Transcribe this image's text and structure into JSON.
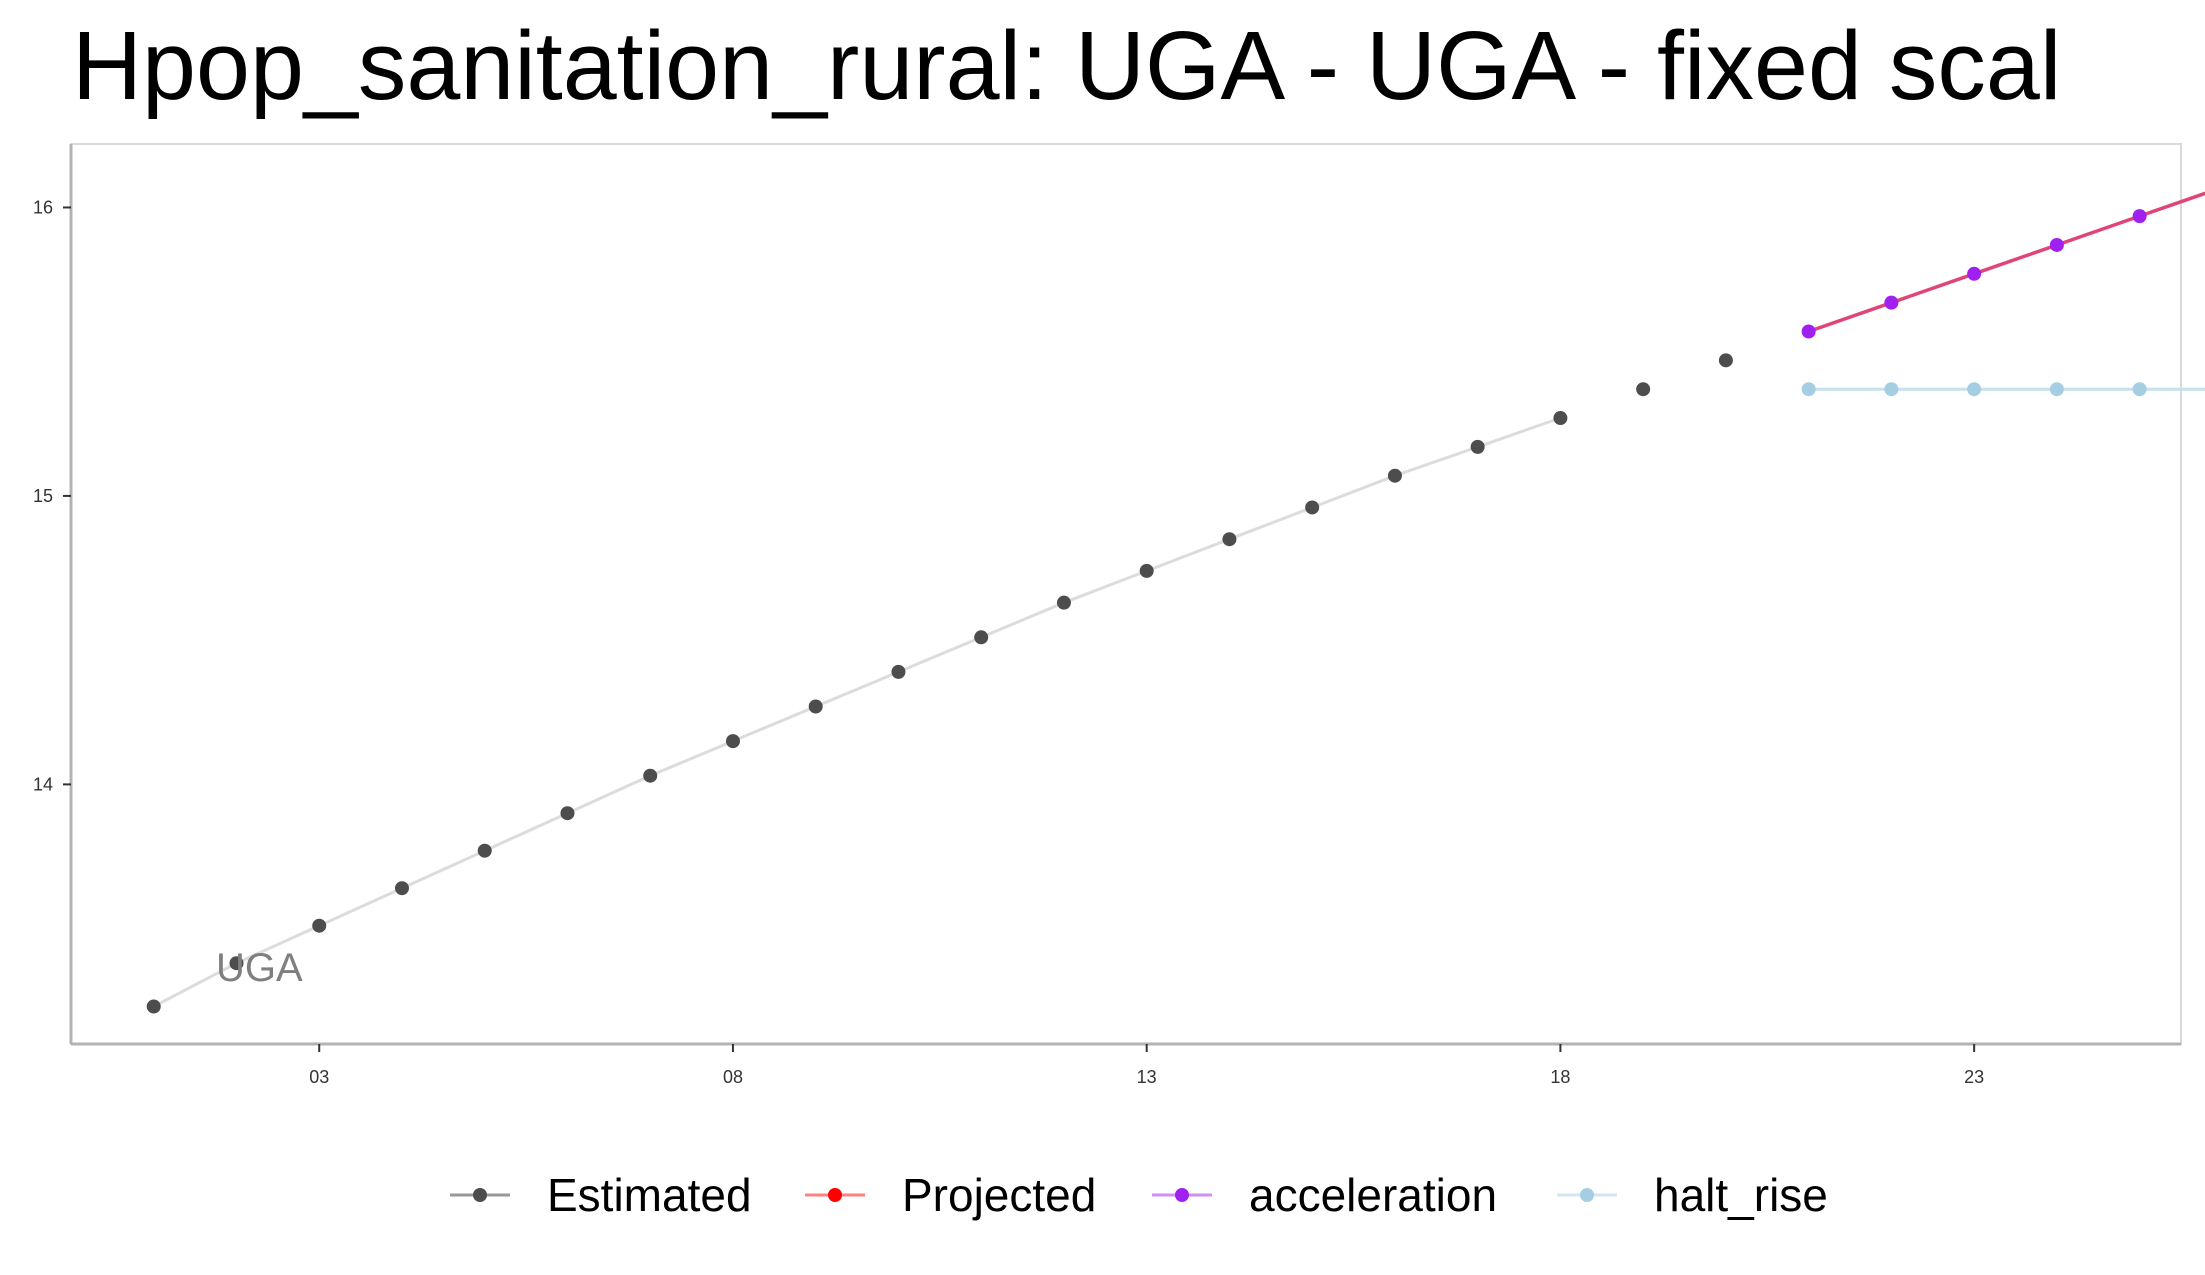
{
  "title": "Hpop_sanitation_rural: UGA - UGA - fixed scal",
  "chart_data": {
    "type": "line",
    "title": "Hpop_sanitation_rural: UGA - UGA - fixed scal",
    "xlabel": "",
    "ylabel": "",
    "xlim": [
      2000,
      2025.5
    ],
    "ylim": [
      13.1,
      16.22
    ],
    "x_ticks": [
      3,
      8,
      13,
      18,
      23
    ],
    "x_tick_labels": [
      "03",
      "08",
      "13",
      "18",
      "23"
    ],
    "y_ticks": [
      14,
      15,
      16
    ],
    "y_tick_labels": [
      "14",
      "15",
      "16"
    ],
    "series_label": "UGA",
    "series": [
      {
        "name": "Estimated",
        "color": "#4d4d4d",
        "line_color": "#dcdcdc",
        "x": [
          2001,
          2002,
          2003,
          2004,
          2005,
          2006,
          2007,
          2008,
          2009,
          2010,
          2011,
          2012,
          2013,
          2014,
          2015,
          2016,
          2017,
          2018,
          2019
        ],
        "values": [
          13.23,
          13.38,
          13.51,
          13.64,
          13.77,
          13.9,
          14.03,
          14.15,
          14.27,
          14.39,
          14.51,
          14.63,
          14.74,
          14.85,
          14.96,
          15.07,
          15.17,
          15.27,
          15.37
        ],
        "line_until_index": 17,
        "extra_point": {
          "x": 2020,
          "value": 15.47
        }
      },
      {
        "name": "Projected",
        "color": "#ff0000",
        "x": [],
        "values": []
      },
      {
        "name": "acceleration",
        "color": "#a020f0",
        "line_color": "#e0457a",
        "x": [
          2021,
          2022,
          2023,
          2024,
          2025,
          2026
        ],
        "values": [
          15.57,
          15.67,
          15.77,
          15.87,
          15.97,
          16.07
        ]
      },
      {
        "name": "halt_rise",
        "color": "#a6cee3",
        "line_color": "#c6e0ef",
        "x": [
          2021,
          2022,
          2023,
          2024,
          2025,
          2026
        ],
        "values": [
          15.37,
          15.37,
          15.37,
          15.37,
          15.37,
          15.37
        ]
      }
    ],
    "legend": {
      "position": "bottom",
      "entries": [
        {
          "label": "Estimated",
          "color": "#4d4d4d",
          "line_color": "#999999"
        },
        {
          "label": "Projected",
          "color": "#ff0000",
          "line_color": "#ff8080"
        },
        {
          "label": "acceleration",
          "color": "#a020f0",
          "line_color": "#cf8ff7"
        },
        {
          "label": "halt_rise",
          "color": "#a6cee3",
          "line_color": "#d2e6f1"
        }
      ]
    }
  }
}
